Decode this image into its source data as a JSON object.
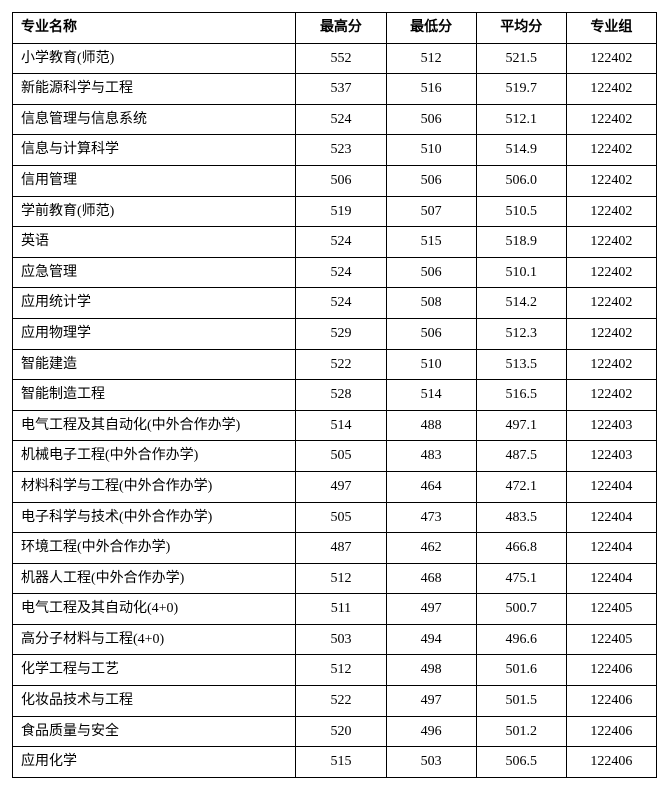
{
  "table": {
    "columns": [
      "专业名称",
      "最高分",
      "最低分",
      "平均分",
      "专业组"
    ],
    "column_widths": [
      "44%",
      "14%",
      "14%",
      "14%",
      "14%"
    ],
    "column_align": [
      "left",
      "center",
      "center",
      "center",
      "center"
    ],
    "header_align": [
      "left",
      "center",
      "center",
      "center",
      "center"
    ],
    "border_color": "#000000",
    "border_width": 1.5,
    "font_family": "SimSun",
    "font_size": 14,
    "header_font_weight": "bold",
    "background_color": "#ffffff",
    "rows": [
      [
        "小学教育(师范)",
        "552",
        "512",
        "521.5",
        "122402"
      ],
      [
        "新能源科学与工程",
        "537",
        "516",
        "519.7",
        "122402"
      ],
      [
        "信息管理与信息系统",
        "524",
        "506",
        "512.1",
        "122402"
      ],
      [
        "信息与计算科学",
        "523",
        "510",
        "514.9",
        "122402"
      ],
      [
        "信用管理",
        "506",
        "506",
        "506.0",
        "122402"
      ],
      [
        "学前教育(师范)",
        "519",
        "507",
        "510.5",
        "122402"
      ],
      [
        "英语",
        "524",
        "515",
        "518.9",
        "122402"
      ],
      [
        "应急管理",
        "524",
        "506",
        "510.1",
        "122402"
      ],
      [
        "应用统计学",
        "524",
        "508",
        "514.2",
        "122402"
      ],
      [
        "应用物理学",
        "529",
        "506",
        "512.3",
        "122402"
      ],
      [
        "智能建造",
        "522",
        "510",
        "513.5",
        "122402"
      ],
      [
        "智能制造工程",
        "528",
        "514",
        "516.5",
        "122402"
      ],
      [
        "电气工程及其自动化(中外合作办学)",
        "514",
        "488",
        "497.1",
        "122403"
      ],
      [
        "机械电子工程(中外合作办学)",
        "505",
        "483",
        "487.5",
        "122403"
      ],
      [
        "材料科学与工程(中外合作办学)",
        "497",
        "464",
        "472.1",
        "122404"
      ],
      [
        "电子科学与技术(中外合作办学)",
        "505",
        "473",
        "483.5",
        "122404"
      ],
      [
        "环境工程(中外合作办学)",
        "487",
        "462",
        "466.8",
        "122404"
      ],
      [
        "机器人工程(中外合作办学)",
        "512",
        "468",
        "475.1",
        "122404"
      ],
      [
        "电气工程及其自动化(4+0)",
        "511",
        "497",
        "500.7",
        "122405"
      ],
      [
        "高分子材料与工程(4+0)",
        "503",
        "494",
        "496.6",
        "122405"
      ],
      [
        "化学工程与工艺",
        "512",
        "498",
        "501.6",
        "122406"
      ],
      [
        "化妆品技术与工程",
        "522",
        "497",
        "501.5",
        "122406"
      ],
      [
        "食品质量与安全",
        "520",
        "496",
        "501.2",
        "122406"
      ],
      [
        "应用化学",
        "515",
        "503",
        "506.5",
        "122406"
      ]
    ]
  }
}
